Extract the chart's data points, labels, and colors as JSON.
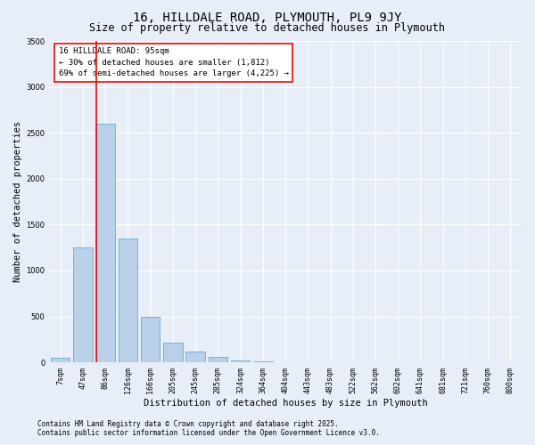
{
  "title": "16, HILLDALE ROAD, PLYMOUTH, PL9 9JY",
  "subtitle": "Size of property relative to detached houses in Plymouth",
  "xlabel": "Distribution of detached houses by size in Plymouth",
  "ylabel": "Number of detached properties",
  "categories": [
    "7sqm",
    "47sqm",
    "86sqm",
    "126sqm",
    "166sqm",
    "205sqm",
    "245sqm",
    "285sqm",
    "324sqm",
    "364sqm",
    "404sqm",
    "443sqm",
    "483sqm",
    "522sqm",
    "562sqm",
    "602sqm",
    "641sqm",
    "681sqm",
    "721sqm",
    "760sqm",
    "800sqm"
  ],
  "values": [
    50,
    1250,
    2600,
    1350,
    500,
    215,
    115,
    55,
    20,
    10,
    5,
    3,
    2,
    0,
    0,
    0,
    0,
    0,
    0,
    0,
    0
  ],
  "bar_color": "#b8d0e8",
  "bar_edge_color": "#6aaad4",
  "ylim": [
    0,
    3500
  ],
  "yticks": [
    0,
    500,
    1000,
    1500,
    2000,
    2500,
    3000,
    3500
  ],
  "red_line_index": 2,
  "annotation_title": "16 HILLDALE ROAD: 95sqm",
  "annotation_line1": "← 30% of detached houses are smaller (1,812)",
  "annotation_line2": "69% of semi-detached houses are larger (4,225) →",
  "footnote1": "Contains HM Land Registry data © Crown copyright and database right 2025.",
  "footnote2": "Contains public sector information licensed under the Open Government Licence v3.0.",
  "bg_color": "#e8eef7",
  "plot_bg_color": "#e8eef7",
  "grid_color": "#ffffff",
  "title_fontsize": 10,
  "subtitle_fontsize": 8.5,
  "label_fontsize": 7.5,
  "tick_fontsize": 6,
  "annotation_fontsize": 6.5,
  "footnote_fontsize": 5.5,
  "ylabel_fontsize": 7.5
}
